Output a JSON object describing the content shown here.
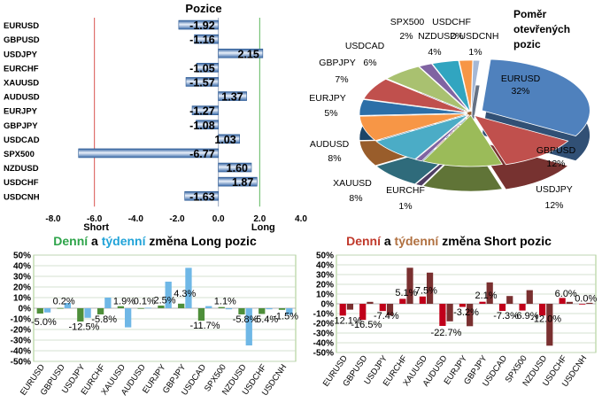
{
  "chart_data": [
    {
      "id": "positions",
      "type": "bar",
      "orientation": "horizontal",
      "title": "Pozice",
      "categories": [
        "EURUSD",
        "GBPUSD",
        "USDJPY",
        "EURCHF",
        "XAUUSD",
        "AUDUSD",
        "EURJPY",
        "GBPJPY",
        "USDCAD",
        "SPX500",
        "NZDUSD",
        "USDCHF",
        "USDCNH"
      ],
      "values": [
        -1.92,
        -1.16,
        2.15,
        -1.05,
        -1.57,
        1.37,
        -1.27,
        -1.08,
        1.03,
        -6.77,
        1.6,
        1.87,
        -1.63
      ],
      "value_labels": [
        "-1.92",
        "-1.16",
        "2.15",
        "-1.05",
        "-1.57",
        "1.37",
        "-1.27",
        "-1.08",
        "1.03",
        "-6.77",
        "1.60",
        "1.87",
        "-1.63"
      ],
      "xlim": [
        -8,
        4
      ],
      "xticks": [
        "-8.0",
        "-6.0",
        "-4.0",
        "-2.0",
        "0.0",
        "2.0",
        "4.0"
      ],
      "threshold_labels": {
        "short": "Short",
        "long": "Long"
      },
      "thresholds": [
        -6,
        2
      ]
    },
    {
      "id": "open-ratio",
      "type": "pie",
      "title": "Poměr otevřených pozic",
      "title_lines": [
        "Poměr",
        "otevřených",
        "pozic"
      ],
      "slices": [
        {
          "name": "EURUSD",
          "value": 32,
          "label": "32%",
          "color": "#4f81bd"
        },
        {
          "name": "GBPUSD",
          "value": 12,
          "label": "12%",
          "color": "#c0504d"
        },
        {
          "name": "USDJPY",
          "value": 12,
          "label": "12%",
          "color": "#9bbb59"
        },
        {
          "name": "EURCHF",
          "value": 1,
          "label": "1%",
          "color": "#8064a2"
        },
        {
          "name": "XAUUSD",
          "value": 8,
          "label": "8%",
          "color": "#4bacc6"
        },
        {
          "name": "AUDUSD",
          "value": 8,
          "label": "8%",
          "color": "#f79646"
        },
        {
          "name": "EURJPY",
          "value": 5,
          "label": "5%",
          "color": "#2c6fa8"
        },
        {
          "name": "GBPJPY",
          "value": 7,
          "label": "7%",
          "color": "#c0504d"
        },
        {
          "name": "USDCAD",
          "value": 6,
          "label": "6%",
          "color": "#a9c170"
        },
        {
          "name": "SPX500",
          "value": 2,
          "label": "2%",
          "color": "#8064a2"
        },
        {
          "name": "NZDUSD",
          "value": 4,
          "label": "4%",
          "color": "#31a5c0"
        },
        {
          "name": "USDCHF",
          "value": 2,
          "label": "2%",
          "color": "#f79646"
        },
        {
          "name": "USDCNH",
          "value": 1,
          "label": "1%",
          "color": "#a5b8d6"
        }
      ]
    },
    {
      "id": "long-change",
      "type": "bar",
      "title_parts": [
        {
          "text": "Denní",
          "color": "#2ea44a"
        },
        {
          "text": " a ",
          "color": "#000000"
        },
        {
          "text": "týdenní",
          "color": "#21a3d8"
        },
        {
          "text": " změna Long pozic",
          "color": "#000000"
        }
      ],
      "categories": [
        "EURUSD",
        "GBPUSD",
        "USDJPY",
        "EURCHF",
        "XAUUSD",
        "AUDUSD",
        "EURJPY",
        "GBPJPY",
        "USDCAD",
        "SPX500",
        "NZDUSD",
        "USDCHF",
        "USDCNH"
      ],
      "series": [
        {
          "name": "Denní",
          "color": "#4e8f3a",
          "values": [
            -5.0,
            0.2,
            -12.5,
            -5.8,
            1.9,
            0.1,
            2.5,
            4.3,
            -11.7,
            1.1,
            -5.8,
            -5.4,
            -1.5
          ]
        },
        {
          "name": "týdenní",
          "color": "#6fb7e6",
          "values": [
            -4.0,
            5.0,
            -9.0,
            10.0,
            -18.0,
            0.5,
            25.0,
            38.0,
            2.0,
            -1.0,
            -35.0,
            -1.0,
            -6.0
          ]
        }
      ],
      "data_labels": [
        {
          "text": "-5.0%",
          "cat": 0,
          "v": -12.5
        },
        {
          "text": "0.2%",
          "cat": 1,
          "v": 7
        },
        {
          "text": "-12.5%",
          "cat": 2,
          "v": -17
        },
        {
          "text": "-5.8%",
          "cat": 3,
          "v": -10
        },
        {
          "text": "1.9%",
          "cat": 4,
          "v": 7
        },
        {
          "text": "0.1%",
          "cat": 5,
          "v": 7
        },
        {
          "text": "2.5%",
          "cat": 6,
          "v": 8
        },
        {
          "text": "4.3%",
          "cat": 7,
          "v": 14
        },
        {
          "text": "-11.7%",
          "cat": 8,
          "v": -16
        },
        {
          "text": "1.1%",
          "cat": 9,
          "v": 7
        },
        {
          "text": "-5.8%",
          "cat": 10,
          "v": -10
        },
        {
          "text": "-5.4%",
          "cat": 11,
          "v": -10
        },
        {
          "text": "-1.5%",
          "cat": 12,
          "v": -7
        }
      ],
      "ylim": [
        -50,
        50
      ],
      "yticks": [
        "-50%",
        "-40%",
        "-30%",
        "-20%",
        "-10%",
        "0%",
        "10%",
        "20%",
        "30%",
        "40%",
        "50%"
      ]
    },
    {
      "id": "short-change",
      "type": "bar",
      "title_parts": [
        {
          "text": "Denní",
          "color": "#c0392b"
        },
        {
          "text": " a ",
          "color": "#000000"
        },
        {
          "text": "týdenní",
          "color": "#b07040"
        },
        {
          "text": " změna Short pozic",
          "color": "#000000"
        }
      ],
      "categories": [
        "EURUSD",
        "GBPUSD",
        "USDJPY",
        "EURCHF",
        "XAUUSD",
        "AUDUSD",
        "EURJPY",
        "GBPJPY",
        "USDCAD",
        "SPX500",
        "NZDUSD",
        "USDCHF",
        "USDCNH"
      ],
      "series": [
        {
          "name": "Denní",
          "color": "#c0001a",
          "values": [
            -12.1,
            -16.5,
            -7.4,
            5.1,
            7.5,
            -22.7,
            -3.2,
            2.1,
            -7.3,
            -6.9,
            -12.0,
            6.0,
            0.0
          ]
        },
        {
          "name": "týdenní",
          "color": "#7a3030",
          "values": [
            -6.0,
            2.0,
            -12.0,
            37.0,
            32.0,
            -18.0,
            -23.0,
            22.0,
            8.0,
            14.0,
            -43.0,
            2.0,
            1.0
          ]
        }
      ],
      "data_labels": [
        {
          "text": "-12.1%",
          "cat": 0,
          "v": -17
        },
        {
          "text": "-16.5%",
          "cat": 1,
          "v": -21
        },
        {
          "text": "-7.4%",
          "cat": 2,
          "v": -12
        },
        {
          "text": "5.1%",
          "cat": 3,
          "v": 12
        },
        {
          "text": "7.5%",
          "cat": 4,
          "v": 14
        },
        {
          "text": "-22.7%",
          "cat": 5,
          "v": -29
        },
        {
          "text": "-3.2%",
          "cat": 6,
          "v": -8
        },
        {
          "text": "2.1%",
          "cat": 7,
          "v": 9
        },
        {
          "text": "-7.3%",
          "cat": 8,
          "v": -12
        },
        {
          "text": "-6.9%",
          "cat": 9,
          "v": -12
        },
        {
          "text": "-12.0%",
          "cat": 10,
          "v": -15
        },
        {
          "text": "6.0%",
          "cat": 11,
          "v": 11
        },
        {
          "text": "0.0%",
          "cat": 12,
          "v": 6
        }
      ],
      "ylim": [
        -50,
        50
      ],
      "yticks": [
        "-50%",
        "-40%",
        "-30%",
        "-20%",
        "-10%",
        "0%",
        "10%",
        "20%",
        "30%",
        "40%",
        "50%"
      ]
    }
  ]
}
